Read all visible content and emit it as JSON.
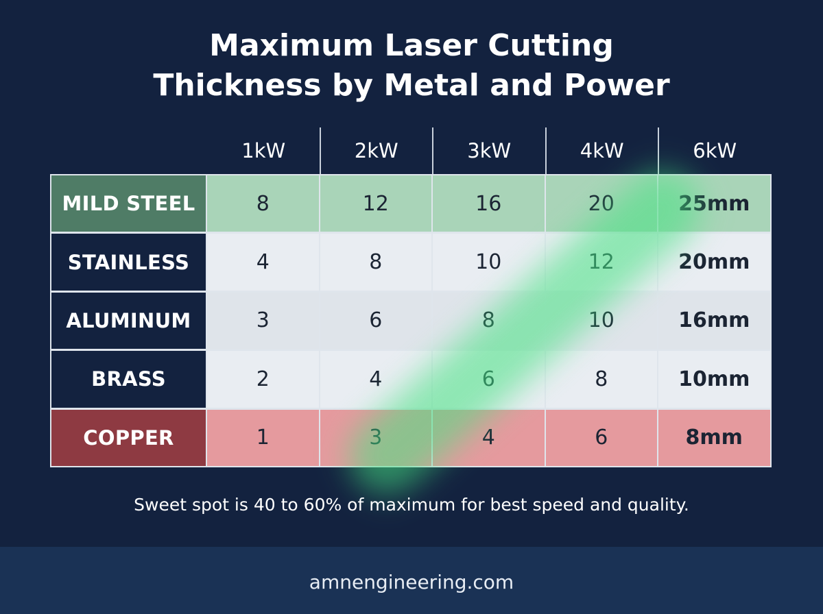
{
  "title_line1": "Maximum Laser Cutting",
  "title_line2": "Thickness by Metal and Power",
  "note": "Sweet spot is 40 to 60% of maximum for best speed and quality.",
  "footer": "amnengineering.com",
  "colors": {
    "background": "#13223f",
    "mild_steel_label": "#4f7c66",
    "mild_steel_cells": "#a9d4b8",
    "neutral_label": "#13223f",
    "neutral_cells": "#e9edf2",
    "copper_label": "#8e3a42",
    "copper_cells": "#e59a9e",
    "highlight_glow": "#46e182"
  },
  "chart_data": {
    "type": "table",
    "title": "Maximum Laser Cutting Thickness by Metal and Power",
    "columns": [
      "1kW",
      "2kW",
      "3kW",
      "4kW",
      "6kW"
    ],
    "rows": [
      {
        "label": "MILD STEEL",
        "values": [
          8,
          12,
          16,
          20,
          25
        ],
        "display": [
          "8",
          "12",
          "16",
          "20",
          "25mm"
        ]
      },
      {
        "label": "STAINLESS",
        "values": [
          4,
          8,
          10,
          12,
          20
        ],
        "display": [
          "4",
          "8",
          "10",
          "12",
          "20mm"
        ]
      },
      {
        "label": "ALUMINUM",
        "values": [
          3,
          6,
          8,
          10,
          16
        ],
        "display": [
          "3",
          "6",
          "8",
          "10",
          "16mm"
        ]
      },
      {
        "label": "BRASS",
        "values": [
          2,
          4,
          6,
          8,
          10
        ],
        "display": [
          "2",
          "4",
          "6",
          "8",
          "10mm"
        ]
      },
      {
        "label": "COPPER",
        "values": [
          1,
          3,
          4,
          6,
          8
        ],
        "display": [
          "1",
          "3",
          "4",
          "6",
          "8mm"
        ]
      }
    ],
    "unit": "mm"
  }
}
